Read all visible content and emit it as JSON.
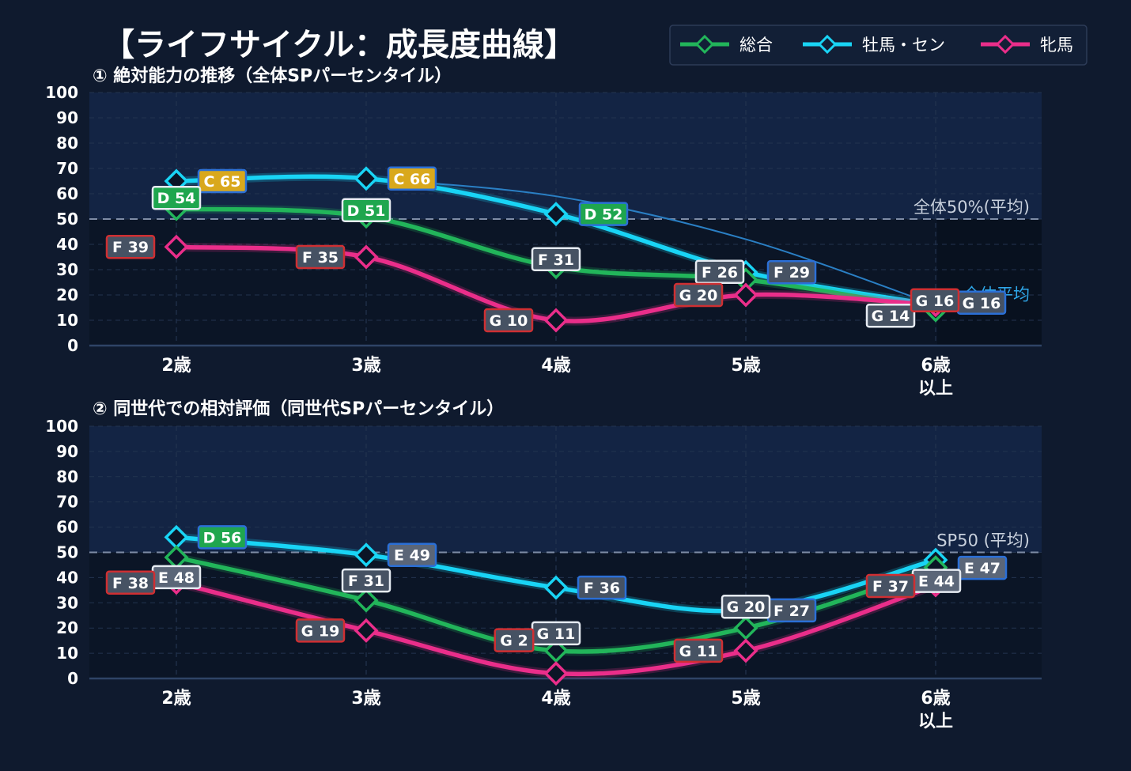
{
  "title": "【ライフサイクル：成長度曲線】",
  "legend": [
    {
      "name": "総合",
      "color": "#22b55a"
    },
    {
      "name": "牡馬・セン",
      "color": "#19d4f5"
    },
    {
      "name": "牝馬",
      "color": "#ea2e8a"
    }
  ],
  "grade_colors": {
    "C": "#d9a81c",
    "D": "#1fa64e",
    "E": "#5b6678",
    "F": "#465263",
    "G": "#465263"
  },
  "series_colors": {
    "total": "#22b55a",
    "male": "#19d4f5",
    "female": "#ea2e8a"
  },
  "chart_data": [
    {
      "type": "line",
      "title": "① 絶対能力の推移（全体SPパーセンタイル）",
      "categories": [
        "2歳",
        "3歳",
        "4歳",
        "5歳",
        "6歳\n以上"
      ],
      "ylim": [
        0,
        100
      ],
      "yticks": [
        0,
        10,
        20,
        30,
        40,
        50,
        60,
        70,
        80,
        90,
        100
      ],
      "grid": true,
      "series": [
        {
          "name": "総合",
          "key": "total",
          "values": [
            54,
            51,
            31,
            26,
            14
          ],
          "labels": [
            "D 54",
            "D 51",
            "F 31",
            "F 26",
            "G 14"
          ]
        },
        {
          "name": "牡馬・セン",
          "key": "male",
          "values": [
            65,
            66,
            52,
            29,
            16
          ],
          "labels": [
            "C 65",
            "C 66",
            "D 52",
            "F 29",
            "G 16"
          ]
        },
        {
          "name": "牝馬",
          "key": "female",
          "values": [
            39,
            35,
            10,
            20,
            16
          ],
          "labels": [
            "F 39",
            "F 35",
            "G 10",
            "G 20",
            "G 16"
          ]
        }
      ],
      "reference": {
        "value": 50,
        "label": "全体50%(平均)"
      },
      "reference2": {
        "label": "全体平均"
      }
    },
    {
      "type": "line",
      "title": "② 同世代での相対評価（同世代SPパーセンタイル）",
      "categories": [
        "2歳",
        "3歳",
        "4歳",
        "5歳",
        "6歳\n以上"
      ],
      "ylim": [
        0,
        100
      ],
      "yticks": [
        0,
        10,
        20,
        30,
        40,
        50,
        60,
        70,
        80,
        90,
        100
      ],
      "grid": true,
      "series": [
        {
          "name": "総合",
          "key": "total",
          "values": [
            48,
            31,
            11,
            20,
            44
          ],
          "labels": [
            "E 48",
            "F 31",
            "G 11",
            "G 20",
            "E 44"
          ]
        },
        {
          "name": "牡馬・セン",
          "key": "male",
          "values": [
            56,
            49,
            36,
            27,
            47
          ],
          "labels": [
            "D 56",
            "E 49",
            "F 36",
            "F 27",
            "E 47"
          ]
        },
        {
          "name": "牝馬",
          "key": "female",
          "values": [
            38,
            19,
            2,
            11,
            37
          ],
          "labels": [
            "F 38",
            "G 19",
            "G 2",
            "G 11",
            "F 37"
          ]
        }
      ],
      "reference": {
        "value": 50,
        "label": "SP50 (平均)"
      }
    }
  ]
}
